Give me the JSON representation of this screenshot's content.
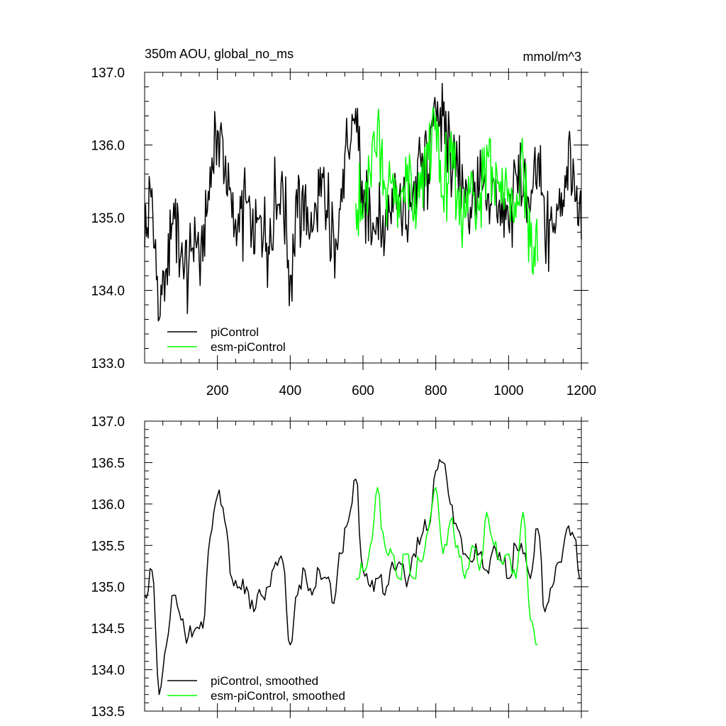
{
  "figure": {
    "title": "350m AOU, global_no_ms",
    "units": "mmol/m^3"
  },
  "chart_data": [
    {
      "type": "line",
      "title": "350m AOU, global_no_ms",
      "units": "mmol/m^3",
      "xlim": [
        0,
        1200
      ],
      "ylim": [
        133.0,
        137.0
      ],
      "x_ticks": [
        200,
        400,
        600,
        800,
        1000,
        1200
      ],
      "x_tick_labels": [
        "200",
        "400",
        "600",
        "800",
        "1000",
        "1200"
      ],
      "y_ticks": [
        133.0,
        134.0,
        135.0,
        136.0,
        137.0
      ],
      "y_tick_labels": [
        "133.0",
        "134.0",
        "135.0",
        "136.0",
        "137.0"
      ],
      "grid": false,
      "legend_position": "bottom-left",
      "series": [
        {
          "name": "piControl",
          "color": "#000000",
          "x_step": 20,
          "x": [
            0,
            20,
            40,
            60,
            80,
            100,
            120,
            140,
            160,
            180,
            200,
            220,
            240,
            260,
            280,
            300,
            320,
            340,
            360,
            380,
            400,
            420,
            440,
            460,
            480,
            500,
            520,
            540,
            560,
            580,
            600,
            620,
            640,
            660,
            680,
            700,
            720,
            740,
            760,
            780,
            800,
            820,
            840,
            860,
            880,
            900,
            920,
            940,
            960,
            980,
            1000,
            1020,
            1040,
            1060,
            1080,
            1100,
            1120,
            1140,
            1160,
            1180,
            1200
          ],
          "values": [
            134.6,
            135.4,
            133.6,
            134.3,
            135.2,
            134.5,
            134.2,
            134.7,
            134.4,
            135.7,
            136.2,
            135.6,
            135.0,
            134.8,
            135.2,
            134.5,
            135.0,
            134.6,
            135.3,
            135.4,
            134.2,
            135.0,
            135.3,
            134.8,
            135.3,
            135.1,
            134.7,
            135.4,
            135.9,
            136.5,
            135.0,
            135.1,
            135.0,
            134.7,
            135.4,
            135.3,
            134.9,
            135.5,
            135.7,
            135.6,
            136.5,
            136.4,
            135.9,
            135.7,
            135.2,
            135.2,
            135.4,
            135.1,
            135.5,
            135.2,
            134.9,
            135.6,
            135.3,
            135.1,
            135.8,
            134.7,
            134.9,
            135.4,
            135.7,
            135.6,
            134.7
          ]
        },
        {
          "name": "esm-piControl",
          "color": "#00ff00",
          "x_step": 20,
          "x": [
            580,
            600,
            620,
            640,
            660,
            680,
            700,
            720,
            740,
            760,
            780,
            800,
            820,
            840,
            860,
            880,
            900,
            920,
            940,
            960,
            980,
            1000,
            1020,
            1040,
            1060,
            1080
          ],
          "values": [
            135.2,
            135.0,
            135.6,
            136.3,
            135.4,
            135.5,
            135.0,
            135.5,
            135.0,
            135.4,
            135.8,
            136.4,
            135.3,
            135.9,
            135.4,
            135.0,
            135.6,
            135.1,
            136.0,
            135.5,
            135.2,
            135.4,
            135.0,
            135.8,
            134.6,
            134.4
          ]
        }
      ]
    },
    {
      "type": "line",
      "xlim": [
        0,
        1200
      ],
      "ylim": [
        133.5,
        137.0
      ],
      "x_ticks": [
        200,
        400,
        600,
        800,
        1000,
        1200
      ],
      "y_ticks": [
        133.5,
        134.0,
        134.5,
        135.0,
        135.5,
        136.0,
        136.5,
        137.0
      ],
      "y_tick_labels": [
        "133.5",
        "134.0",
        "134.5",
        "135.0",
        "135.5",
        "136.0",
        "136.5",
        "137.0"
      ],
      "grid": false,
      "legend_position": "bottom-left",
      "series": [
        {
          "name": "piControl, smoothed",
          "color": "#000000",
          "x_step": 20,
          "x": [
            0,
            20,
            40,
            60,
            80,
            100,
            120,
            140,
            160,
            180,
            200,
            220,
            240,
            260,
            280,
            300,
            320,
            340,
            360,
            380,
            400,
            420,
            440,
            460,
            480,
            500,
            520,
            540,
            560,
            580,
            600,
            620,
            640,
            660,
            680,
            700,
            720,
            740,
            760,
            780,
            800,
            820,
            840,
            860,
            880,
            900,
            920,
            940,
            960,
            980,
            1000,
            1020,
            1040,
            1060,
            1080,
            1100,
            1120,
            1140,
            1160,
            1180,
            1200
          ],
          "values": [
            134.9,
            135.2,
            133.7,
            134.3,
            134.9,
            134.6,
            134.4,
            134.5,
            134.5,
            135.6,
            136.1,
            135.8,
            135.1,
            135.0,
            135.0,
            134.7,
            134.9,
            135.0,
            135.3,
            135.3,
            134.3,
            134.9,
            135.2,
            134.9,
            135.2,
            135.1,
            134.8,
            135.4,
            135.8,
            136.3,
            135.2,
            135.0,
            135.1,
            134.9,
            135.3,
            135.3,
            135.0,
            135.4,
            135.6,
            135.7,
            136.4,
            136.5,
            136.0,
            135.7,
            135.4,
            135.3,
            135.4,
            135.2,
            135.5,
            135.3,
            135.1,
            135.5,
            135.4,
            135.1,
            135.7,
            134.7,
            135.0,
            135.3,
            135.7,
            135.6,
            135.1
          ]
        },
        {
          "name": "esm-piControl, smoothed",
          "color": "#00ff00",
          "x_step": 20,
          "x": [
            580,
            600,
            620,
            640,
            660,
            680,
            700,
            720,
            740,
            760,
            780,
            800,
            820,
            840,
            860,
            880,
            900,
            920,
            940,
            960,
            980,
            1000,
            1020,
            1040,
            1060,
            1080
          ],
          "values": [
            135.1,
            135.2,
            135.5,
            136.2,
            135.5,
            135.4,
            135.1,
            135.4,
            135.1,
            135.3,
            135.7,
            136.2,
            135.4,
            135.8,
            135.5,
            135.1,
            135.5,
            135.2,
            135.9,
            135.5,
            135.3,
            135.4,
            135.1,
            135.9,
            134.6,
            134.3
          ]
        }
      ]
    }
  ]
}
